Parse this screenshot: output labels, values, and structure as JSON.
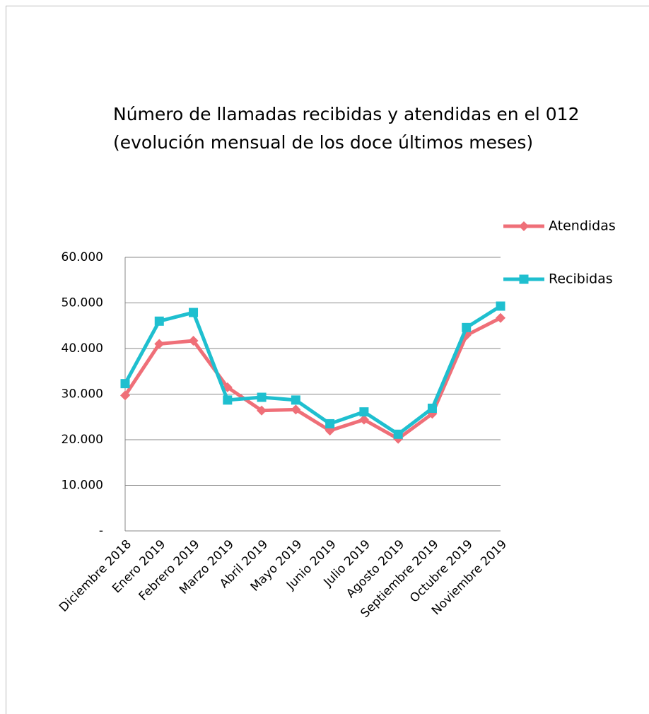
{
  "chart_data": {
    "type": "line",
    "title": "Número de llamadas recibidas y atendidas en el 012",
    "subtitle": "(evolución mensual de los doce últimos meses)",
    "categories": [
      "Diciembre 2018",
      "Enero 2019",
      "Febrero 2019",
      "Marzo 2019",
      "Abril 2019",
      "Mayo 2019",
      "Junio 2019",
      "Julio 2019",
      "Agosto 2019",
      "Septiembre 2019",
      "Octubre 2019",
      "Noviembre 2019"
    ],
    "series": [
      {
        "name": "Atendidas",
        "color": "#ef6f78",
        "marker": "diamond",
        "values": [
          29700,
          41000,
          41700,
          31500,
          26400,
          26600,
          22000,
          24400,
          20200,
          25700,
          42900,
          46700
        ]
      },
      {
        "name": "Recibidas",
        "color": "#1fbfcf",
        "marker": "square",
        "values": [
          32300,
          46000,
          47900,
          28700,
          29300,
          28700,
          23500,
          26100,
          21200,
          26900,
          44600,
          49300
        ]
      }
    ],
    "ylim": [
      0,
      60000
    ],
    "yticks": [
      {
        "value": 0,
        "label": "-"
      },
      {
        "value": 10000,
        "label": "10.000"
      },
      {
        "value": 20000,
        "label": "20.000"
      },
      {
        "value": 30000,
        "label": "30.000"
      },
      {
        "value": 40000,
        "label": "40.000"
      },
      {
        "value": 50000,
        "label": "50.000"
      },
      {
        "value": 60000,
        "label": "60.000"
      }
    ],
    "grid": true,
    "legend": "right"
  }
}
